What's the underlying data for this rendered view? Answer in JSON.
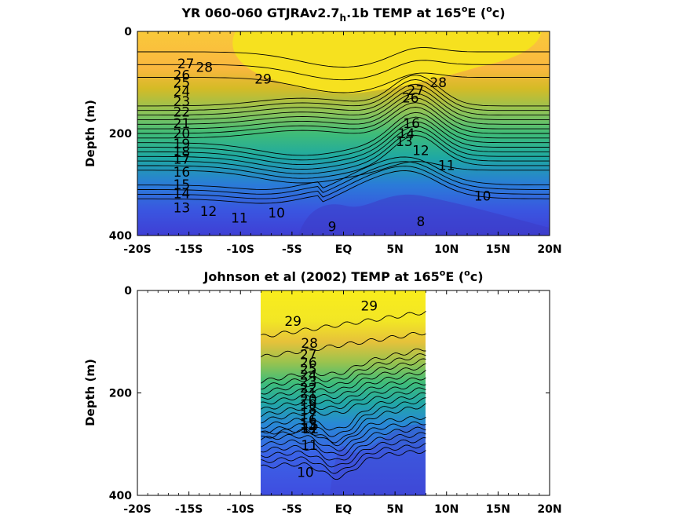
{
  "chart_data": [
    {
      "type": "contour",
      "title": "YR 060-060 GTJRAv2.7",
      "title_subscript": "h",
      "title_tail": ".1b TEMP at 165",
      "title_degree": "o",
      "title_end_a": "E (",
      "title_end_b": "c)",
      "ylabel": "Depth (m)",
      "xlim": [
        -20,
        20
      ],
      "ylim": [
        400,
        0
      ],
      "xticks": [
        -20,
        -15,
        -10,
        -5,
        0,
        5,
        10,
        15,
        20
      ],
      "xticklabels": [
        "-20S",
        "-15S",
        "-10S",
        "-5S",
        "EQ",
        "5N",
        "10N",
        "15N",
        "20N"
      ],
      "yticks": [
        0,
        200,
        400
      ],
      "yticklabels": [
        "0",
        "200",
        "400"
      ],
      "data_xrange": [
        -20,
        20
      ],
      "colormap": "parula",
      "contour_levels": [
        8,
        9,
        10,
        11,
        12,
        13,
        14,
        15,
        16,
        17,
        18,
        19,
        20,
        21,
        22,
        23,
        24,
        25,
        26,
        27,
        28,
        29
      ],
      "contour_labels": [
        {
          "text": "28",
          "x": -13.5,
          "y": 70
        },
        {
          "text": "27",
          "x": -15.3,
          "y": 63
        },
        {
          "text": "29",
          "x": -7.8,
          "y": 93
        },
        {
          "text": "26",
          "x": -15.7,
          "y": 85
        },
        {
          "text": "25",
          "x": -15.7,
          "y": 100
        },
        {
          "text": "24",
          "x": -15.7,
          "y": 118
        },
        {
          "text": "23",
          "x": -15.7,
          "y": 137
        },
        {
          "text": "22",
          "x": -15.7,
          "y": 158
        },
        {
          "text": "21",
          "x": -15.7,
          "y": 180
        },
        {
          "text": "20",
          "x": -15.7,
          "y": 200
        },
        {
          "text": "19",
          "x": -15.7,
          "y": 220
        },
        {
          "text": "18",
          "x": -15.7,
          "y": 235
        },
        {
          "text": "17",
          "x": -15.7,
          "y": 250
        },
        {
          "text": "16",
          "x": -15.7,
          "y": 275
        },
        {
          "text": "15",
          "x": -15.7,
          "y": 300
        },
        {
          "text": "14",
          "x": -15.7,
          "y": 318
        },
        {
          "text": "13",
          "x": -15.7,
          "y": 345
        },
        {
          "text": "12",
          "x": -13.1,
          "y": 352
        },
        {
          "text": "11",
          "x": -10.1,
          "y": 365
        },
        {
          "text": "10",
          "x": -6.5,
          "y": 355
        },
        {
          "text": "9",
          "x": -1.1,
          "y": 382
        },
        {
          "text": "8",
          "x": 7.5,
          "y": 372
        },
        {
          "text": "28",
          "x": 9.2,
          "y": 100
        },
        {
          "text": "27",
          "x": 7.0,
          "y": 115
        },
        {
          "text": "26",
          "x": 6.5,
          "y": 130
        },
        {
          "text": "12",
          "x": 7.5,
          "y": 233
        },
        {
          "text": "11",
          "x": 10.0,
          "y": 262
        },
        {
          "text": "10",
          "x": 13.5,
          "y": 322
        },
        {
          "text": "13",
          "x": 5.9,
          "y": 215
        },
        {
          "text": "14",
          "x": 6.1,
          "y": 200
        },
        {
          "text": "16",
          "x": 6.6,
          "y": 180
        }
      ]
    },
    {
      "type": "contour",
      "title": "Johnson et al (2002) TEMP at 165",
      "title_degree": "o",
      "title_end_a": "E (",
      "title_end_b": "c)",
      "ylabel": "Depth (m)",
      "xlim": [
        -20,
        20
      ],
      "ylim": [
        400,
        0
      ],
      "xticks": [
        -20,
        -15,
        -10,
        -5,
        0,
        5,
        10,
        15,
        20
      ],
      "xticklabels": [
        "-20S",
        "-15S",
        "-10S",
        "-5S",
        "EQ",
        "5N",
        "10N",
        "15N",
        "20N"
      ],
      "yticks": [
        0,
        200,
        400
      ],
      "yticklabels": [
        "0",
        "200",
        "400"
      ],
      "data_xrange": [
        -8,
        8
      ],
      "colormap": "parula",
      "contour_levels": [
        10,
        11,
        12,
        13,
        14,
        15,
        16,
        17,
        18,
        19,
        20,
        21,
        22,
        23,
        24,
        25,
        26,
        27,
        28,
        29
      ],
      "contour_labels": [
        {
          "text": "29",
          "x": -4.9,
          "y": 60
        },
        {
          "text": "29",
          "x": 2.5,
          "y": 30
        },
        {
          "text": "28",
          "x": -3.3,
          "y": 103
        },
        {
          "text": "27",
          "x": -3.4,
          "y": 125
        },
        {
          "text": "26",
          "x": -3.4,
          "y": 140
        },
        {
          "text": "25",
          "x": -3.4,
          "y": 153
        },
        {
          "text": "24",
          "x": -3.4,
          "y": 165
        },
        {
          "text": "23",
          "x": -3.4,
          "y": 178
        },
        {
          "text": "22",
          "x": -3.4,
          "y": 190
        },
        {
          "text": "21",
          "x": -3.4,
          "y": 200
        },
        {
          "text": "20",
          "x": -3.4,
          "y": 212
        },
        {
          "text": "19",
          "x": -3.4,
          "y": 222
        },
        {
          "text": "18",
          "x": -3.4,
          "y": 232
        },
        {
          "text": "17",
          "x": -3.4,
          "y": 242
        },
        {
          "text": "16",
          "x": -3.4,
          "y": 252
        },
        {
          "text": "15",
          "x": -3.4,
          "y": 260
        },
        {
          "text": "14",
          "x": -3.4,
          "y": 268
        },
        {
          "text": "13",
          "x": -3.4,
          "y": 262
        },
        {
          "text": "12",
          "x": -3.2,
          "y": 270
        },
        {
          "text": "11",
          "x": -3.3,
          "y": 302
        },
        {
          "text": "10",
          "x": -3.7,
          "y": 355
        }
      ]
    }
  ]
}
